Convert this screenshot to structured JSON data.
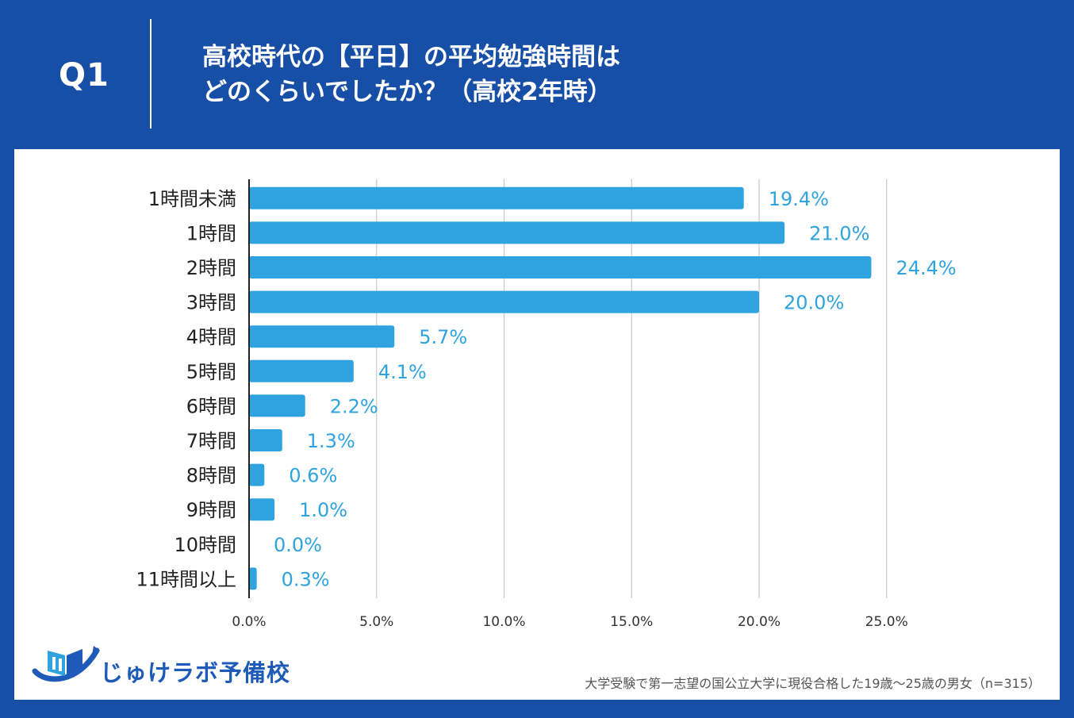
{
  "header": {
    "q_label": "Q1",
    "title_line1": "高校時代の【平日】の平均勉強時間は",
    "title_line2": "どのくらいでしたか？（高校2年時）"
  },
  "colors": {
    "background": "#174EA6",
    "bar": "#2EA3DF",
    "value_text": "#2EA3DF",
    "grid": "#C8C8C8"
  },
  "chart_data": {
    "type": "bar",
    "orientation": "horizontal",
    "categories": [
      "1時間未満",
      "1時間",
      "2時間",
      "3時間",
      "4時間",
      "5時間",
      "6時間",
      "7時間",
      "8時間",
      "9時間",
      "10時間",
      "11時間以上"
    ],
    "values": [
      19.4,
      21.0,
      24.4,
      20.0,
      5.7,
      4.1,
      2.2,
      1.3,
      0.6,
      1.0,
      0.0,
      0.3
    ],
    "value_labels": [
      "19.4%",
      "21.0%",
      "24.4%",
      "20.0%",
      "5.7%",
      "4.1%",
      "2.2%",
      "1.3%",
      "0.6%",
      "1.0%",
      "0.0%",
      "0.3%"
    ],
    "x_ticks": [
      0,
      5,
      10,
      15,
      20,
      25
    ],
    "x_tick_labels": [
      "0.0%",
      "5.0%",
      "10.0%",
      "15.0%",
      "20.0%",
      "25.0%"
    ],
    "xlim": [
      0,
      27.5
    ],
    "grid": true,
    "title": "",
    "xlabel": "",
    "ylabel": ""
  },
  "footer": {
    "logo_text": "じゅけラボ予備校",
    "logo_icon": "book-icon",
    "source_note": "大学受験で第一志望の国公立大学に現役合格した19歳～25歳の男女（n=315）"
  }
}
